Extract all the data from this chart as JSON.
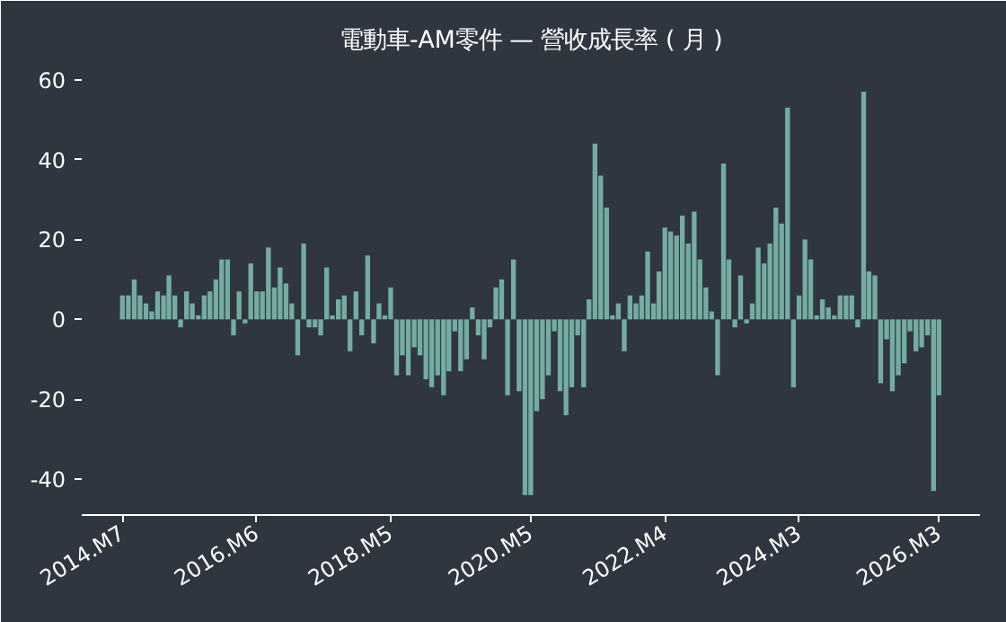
{
  "chart_data": {
    "type": "bar",
    "title": "電動車-AM零件 — 營收成長率 ( 月 )",
    "x": [
      "2014-07",
      "2014-08",
      "2014-09",
      "2014-10",
      "2014-11",
      "2014-12",
      "2015-01",
      "2015-02",
      "2015-03",
      "2015-04",
      "2015-05",
      "2015-06",
      "2015-07",
      "2015-08",
      "2015-09",
      "2015-10",
      "2015-11",
      "2015-12",
      "2016-01",
      "2016-02",
      "2016-03",
      "2016-04",
      "2016-05",
      "2016-06",
      "2016-07",
      "2016-08",
      "2016-09",
      "2016-10",
      "2016-11",
      "2016-12",
      "2017-01",
      "2017-02",
      "2017-03",
      "2017-04",
      "2017-05",
      "2017-06",
      "2017-07",
      "2017-08",
      "2017-09",
      "2017-10",
      "2017-11",
      "2017-12",
      "2018-01",
      "2018-02",
      "2018-03",
      "2018-04",
      "2018-05",
      "2018-06",
      "2018-07",
      "2018-08",
      "2018-09",
      "2018-10",
      "2018-11",
      "2018-12",
      "2019-01",
      "2019-02",
      "2019-03",
      "2019-04",
      "2019-05",
      "2019-06",
      "2019-07",
      "2019-08",
      "2019-09",
      "2019-10",
      "2019-11",
      "2019-12",
      "2020-01",
      "2020-02",
      "2020-03",
      "2020-04",
      "2020-05",
      "2020-06",
      "2020-07",
      "2020-08",
      "2020-09",
      "2020-10",
      "2020-11",
      "2020-12",
      "2021-01",
      "2021-02",
      "2021-03",
      "2021-04",
      "2021-05",
      "2021-06",
      "2021-07",
      "2021-08",
      "2021-09",
      "2021-10",
      "2021-11",
      "2021-12",
      "2022-01",
      "2022-02",
      "2022-03",
      "2022-04",
      "2022-05",
      "2022-06",
      "2022-07",
      "2022-08",
      "2022-09",
      "2022-10",
      "2022-11",
      "2022-12",
      "2023-01",
      "2023-02",
      "2023-03",
      "2023-04",
      "2023-05",
      "2023-06",
      "2023-07",
      "2023-08",
      "2023-09",
      "2023-10",
      "2023-11",
      "2023-12",
      "2024-01",
      "2024-02",
      "2024-03",
      "2024-04",
      "2024-05",
      "2024-06",
      "2024-07",
      "2024-08",
      "2024-09",
      "2024-10",
      "2024-11",
      "2024-12",
      "2025-01",
      "2025-02",
      "2025-03",
      "2025-04",
      "2025-05",
      "2025-06",
      "2025-07",
      "2025-08",
      "2025-09",
      "2025-10",
      "2025-11",
      "2025-12",
      "2026-01",
      "2026-02",
      "2026-03"
    ],
    "values": [
      6,
      6,
      10,
      6,
      4,
      2,
      7,
      6,
      11,
      6,
      -2,
      7,
      4,
      1,
      6,
      7,
      10,
      15,
      15,
      -4,
      7,
      -1,
      14,
      7,
      7,
      18,
      8,
      13,
      9,
      4,
      -9,
      19,
      -2,
      -2,
      -4,
      13,
      1,
      5,
      6,
      -8,
      7,
      -4,
      16,
      -6,
      4,
      1,
      8,
      -14,
      -9,
      -14,
      -7,
      -9,
      -15,
      -17,
      -14,
      -19,
      -13,
      -3,
      -13,
      -10,
      3,
      -4,
      -10,
      -2,
      8,
      10,
      -19,
      15,
      -18,
      -44,
      -44,
      -23,
      -20,
      -14,
      -3,
      -18,
      -24,
      -17,
      -4,
      -17,
      5,
      44,
      36,
      28,
      1,
      4,
      -8,
      6,
      4,
      6,
      17,
      4,
      12,
      23,
      22,
      21,
      26,
      19,
      27,
      15,
      8,
      2,
      -14,
      39,
      15,
      -2,
      11,
      -1,
      4,
      18,
      14,
      19,
      28,
      24,
      53,
      -17,
      6,
      20,
      15,
      1,
      5,
      3,
      1,
      6,
      6,
      6,
      -2,
      57,
      12,
      11,
      -16,
      -5,
      -18,
      -14,
      -11,
      -3,
      -8,
      -7,
      -4,
      -43,
      -19
    ],
    "color": "#74aca3",
    "xlim": [
      "2013-12",
      "2026-10"
    ],
    "xticks": [
      {
        "value": "2014-07",
        "label": "2014.M7"
      },
      {
        "value": "2016-06",
        "label": "2016.M6"
      },
      {
        "value": "2018-05",
        "label": "2018.M5"
      },
      {
        "value": "2020-05",
        "label": "2020.M5"
      },
      {
        "value": "2022-04",
        "label": "2022.M4"
      },
      {
        "value": "2024-03",
        "label": "2024.M3"
      },
      {
        "value": "2026-03",
        "label": "2026.M3"
      }
    ],
    "ylim": [
      -49,
      64
    ],
    "yticks": [
      -40,
      -20,
      0,
      20,
      40,
      60
    ],
    "grid": false
  }
}
